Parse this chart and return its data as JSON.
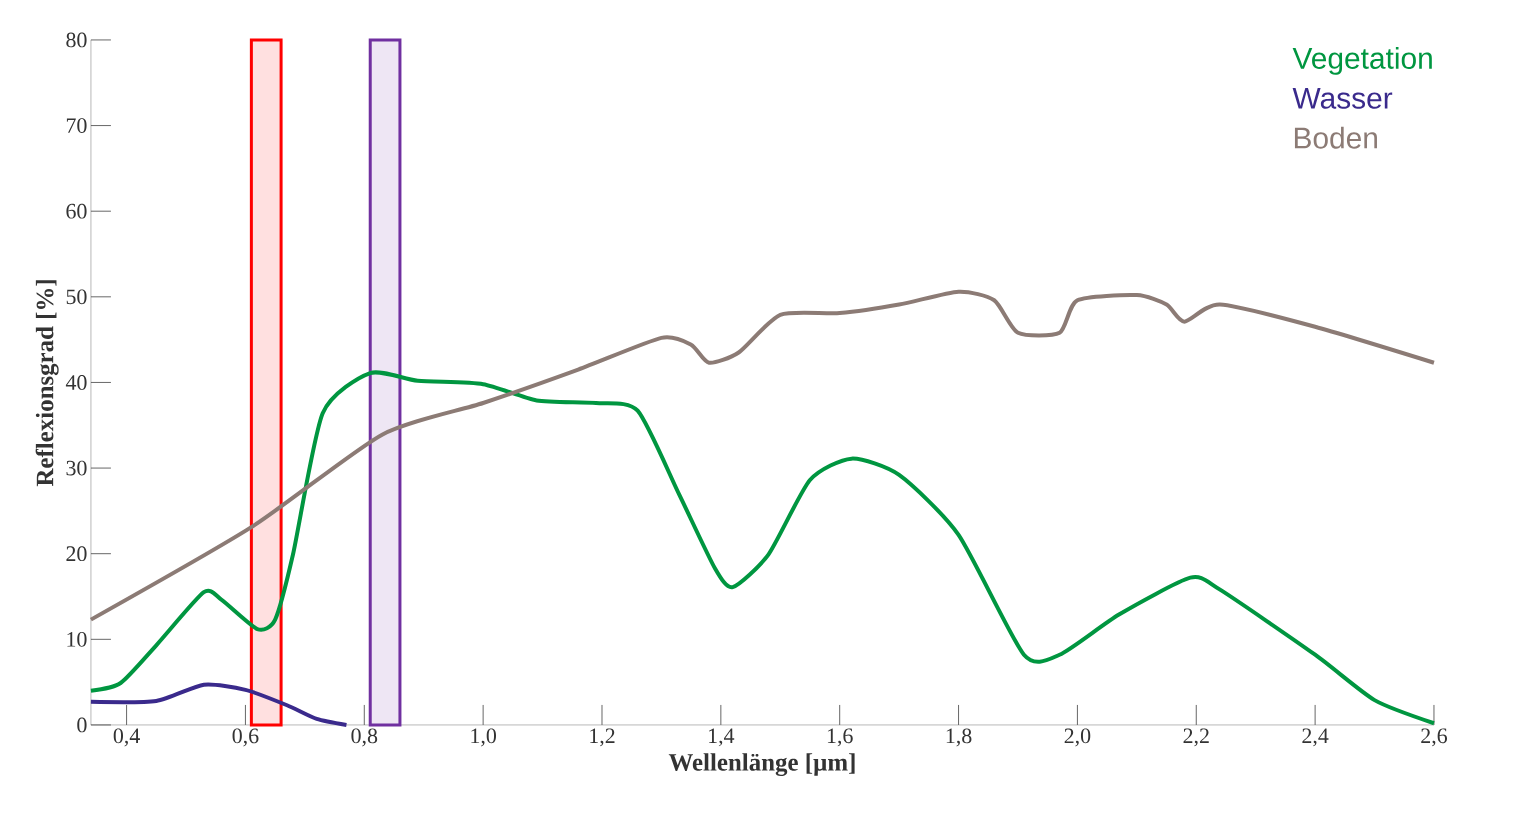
{
  "chart_data": {
    "type": "line",
    "xlabel": "Wellenlänge [µm]",
    "ylabel": "Reflexionsgrad [%]",
    "xlim": [
      0.34,
      2.6
    ],
    "ylim": [
      0,
      80
    ],
    "xticks": [
      {
        "value": 0.4,
        "label": "0,4"
      },
      {
        "value": 0.6,
        "label": "0,6"
      },
      {
        "value": 0.8,
        "label": "0,8"
      },
      {
        "value": 1.0,
        "label": "1,0"
      },
      {
        "value": 1.2,
        "label": "1,2"
      },
      {
        "value": 1.4,
        "label": "1,4"
      },
      {
        "value": 1.6,
        "label": "1,6"
      },
      {
        "value": 1.8,
        "label": "1,8"
      },
      {
        "value": 2.0,
        "label": "2,0"
      },
      {
        "value": 2.2,
        "label": "2,2"
      },
      {
        "value": 2.4,
        "label": "2,4"
      },
      {
        "value": 2.6,
        "label": "2,6"
      }
    ],
    "yticks": [
      0,
      10,
      20,
      30,
      40,
      50,
      60,
      70,
      80
    ],
    "legend": "top right",
    "grid": false,
    "series": [
      {
        "name": "Vegetation",
        "color": "#009640",
        "x": [
          0.34,
          0.39,
          0.45,
          0.53,
          0.56,
          0.62,
          0.65,
          0.68,
          0.73,
          0.81,
          0.89,
          1.0,
          1.09,
          1.19,
          1.26,
          1.33,
          1.39,
          1.42,
          1.48,
          1.55,
          1.62,
          1.7,
          1.8,
          1.91,
          1.97,
          2.07,
          2.19,
          2.24,
          2.4,
          2.5,
          2.6
        ],
        "values": [
          4.0,
          4.9,
          9.3,
          15.5,
          14.6,
          11.2,
          12.3,
          19.9,
          36.4,
          41.1,
          40.2,
          39.8,
          37.9,
          37.6,
          36.7,
          26.9,
          18.3,
          16.1,
          19.9,
          28.6,
          31.1,
          29.2,
          22.2,
          8.2,
          8.2,
          12.9,
          17.2,
          15.8,
          8.2,
          2.9,
          0.2
        ]
      },
      {
        "name": "Wasser",
        "color": "#3a2a8c",
        "x": [
          0.34,
          0.45,
          0.53,
          0.6,
          0.67,
          0.72,
          0.77
        ],
        "values": [
          2.7,
          2.8,
          4.7,
          4.1,
          2.3,
          0.7,
          0
        ]
      },
      {
        "name": "Boden",
        "color": "#8c7b75",
        "x": [
          0.34,
          0.61,
          0.83,
          1.0,
          1.16,
          1.3,
          1.35,
          1.38,
          1.43,
          1.5,
          1.6,
          1.7,
          1.8,
          1.86,
          1.9,
          1.97,
          2.0,
          2.1,
          2.15,
          2.18,
          2.24,
          2.4,
          2.6
        ],
        "values": [
          12.3,
          23.1,
          33.9,
          37.6,
          41.5,
          45.2,
          44.4,
          42.3,
          43.5,
          47.9,
          48.1,
          49.1,
          50.6,
          49.6,
          45.8,
          45.8,
          49.6,
          50.2,
          49.1,
          47.1,
          49.1,
          46.5,
          42.3
        ]
      }
    ],
    "bands": [
      {
        "axis": "x",
        "from": 0.61,
        "to": 0.66,
        "color": "#ff0000"
      },
      {
        "axis": "x",
        "from": 0.81,
        "to": 0.86,
        "color": "#7030a0"
      }
    ]
  }
}
